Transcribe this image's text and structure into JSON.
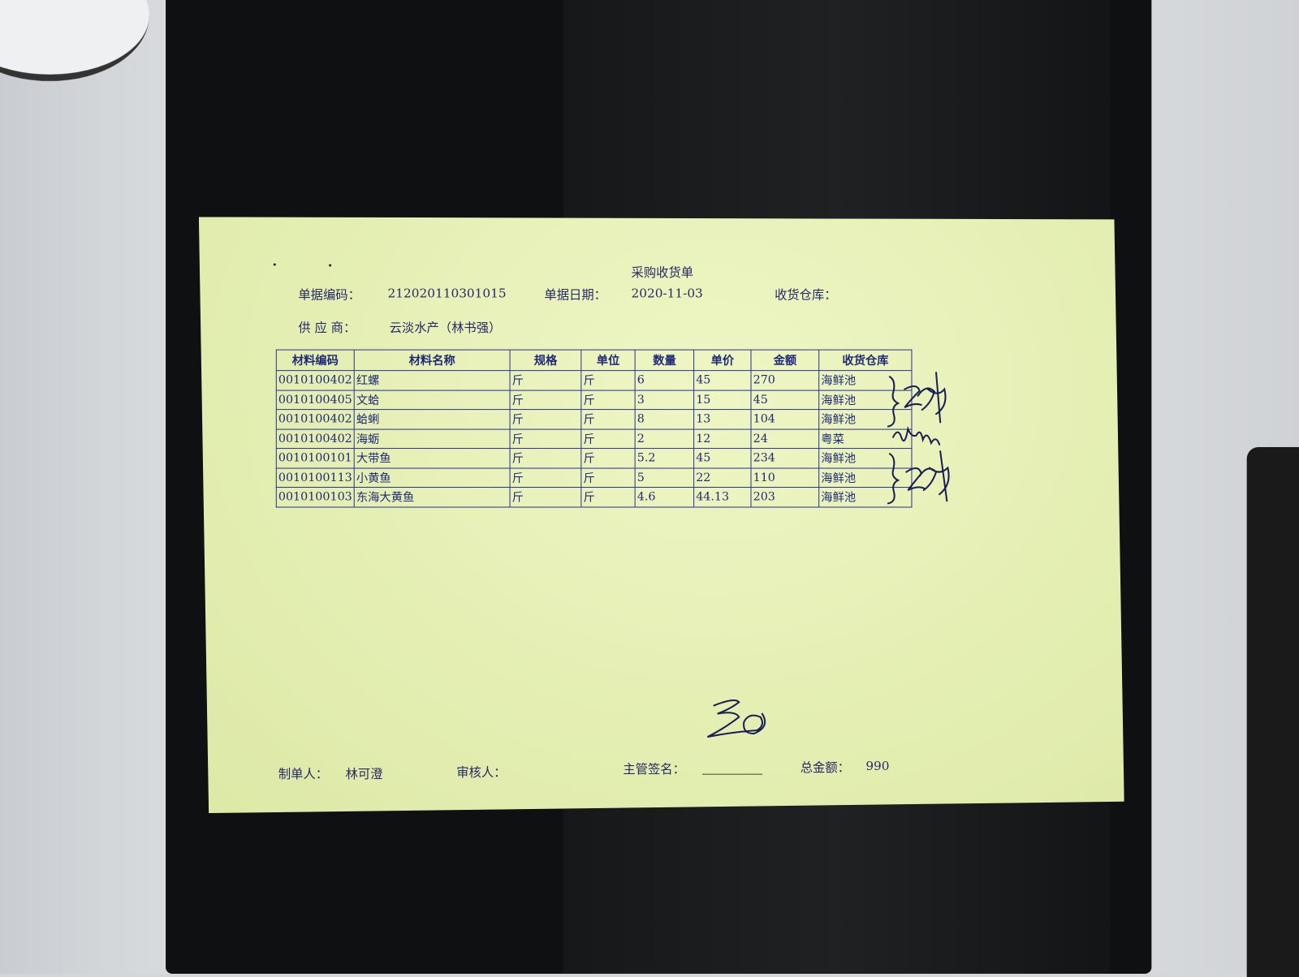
{
  "document": {
    "title": "采购收货单",
    "doc_no_label": "单据编码：",
    "doc_no": "212020110301015",
    "doc_date_label": "单据日期：",
    "doc_date": "2020-11-03",
    "warehouse_label": "收货仓库：",
    "supplier_label": "供 应 商：",
    "supplier": "云淡水产（林书强）"
  },
  "table": {
    "headers": [
      "材料编码",
      "材料名称",
      "规格",
      "单位",
      "数量",
      "单价",
      "金额",
      "收货仓库"
    ],
    "rows": [
      [
        "0010100402",
        "红螺",
        "斤",
        "斤",
        "6",
        "45",
        "270",
        "海鲜池"
      ],
      [
        "0010100405",
        "文蛤",
        "斤",
        "斤",
        "3",
        "15",
        "45",
        "海鲜池"
      ],
      [
        "0010100402",
        "蛤蜊",
        "斤",
        "斤",
        "8",
        "13",
        "104",
        "海鲜池"
      ],
      [
        "0010100402",
        "海蛎",
        "斤",
        "斤",
        "2",
        "12",
        "24",
        "粤菜"
      ],
      [
        "0010100101",
        "大带鱼",
        "斤",
        "斤",
        "5.2",
        "45",
        "234",
        "海鲜池"
      ],
      [
        "0010100113",
        "小黄鱼",
        "斤",
        "斤",
        "5",
        "22",
        "110",
        "海鲜池"
      ],
      [
        "0010100103",
        "东海大黄鱼",
        "斤",
        "斤",
        "4.6",
        "44.13",
        "203",
        "海鲜池"
      ]
    ]
  },
  "footer": {
    "maker_label": "制单人：",
    "maker": "林可澄",
    "reviewer_label": "审核人：",
    "supervisor_label": "主管签名：",
    "total_label": "总金额：",
    "total": "990"
  },
  "colors": {
    "paper": "#e4eeb0",
    "ink": "#1f2a78",
    "board": "#0f1011"
  }
}
